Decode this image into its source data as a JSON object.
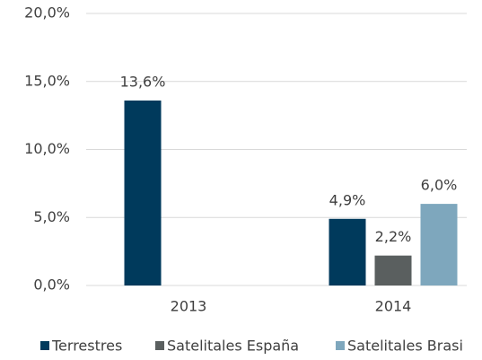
{
  "chart_data": {
    "type": "bar",
    "categories": [
      "2013",
      "2014"
    ],
    "series": [
      {
        "name": "Terrestres",
        "color": "#003a5c",
        "values": [
          13.6,
          4.9
        ],
        "value_labels": [
          "13,6%",
          "4,9%"
        ]
      },
      {
        "name": "Satelitales España",
        "color": "#5a5f5f",
        "values": [
          null,
          2.2
        ],
        "value_labels": [
          null,
          "2,2%"
        ]
      },
      {
        "name": "Satelitales Brasi",
        "color": "#7ea7bd",
        "values": [
          null,
          6.0
        ],
        "value_labels": [
          null,
          "6,0%"
        ]
      }
    ],
    "ylim": [
      0,
      20
    ],
    "yticks": [
      {
        "value": 0,
        "label": "0,0%"
      },
      {
        "value": 5,
        "label": "5,0%"
      },
      {
        "value": 10,
        "label": "10,0%"
      },
      {
        "value": 15,
        "label": "15,0%"
      },
      {
        "value": 20,
        "label": "20,0%"
      }
    ],
    "grid": true,
    "legend": "bottom"
  }
}
